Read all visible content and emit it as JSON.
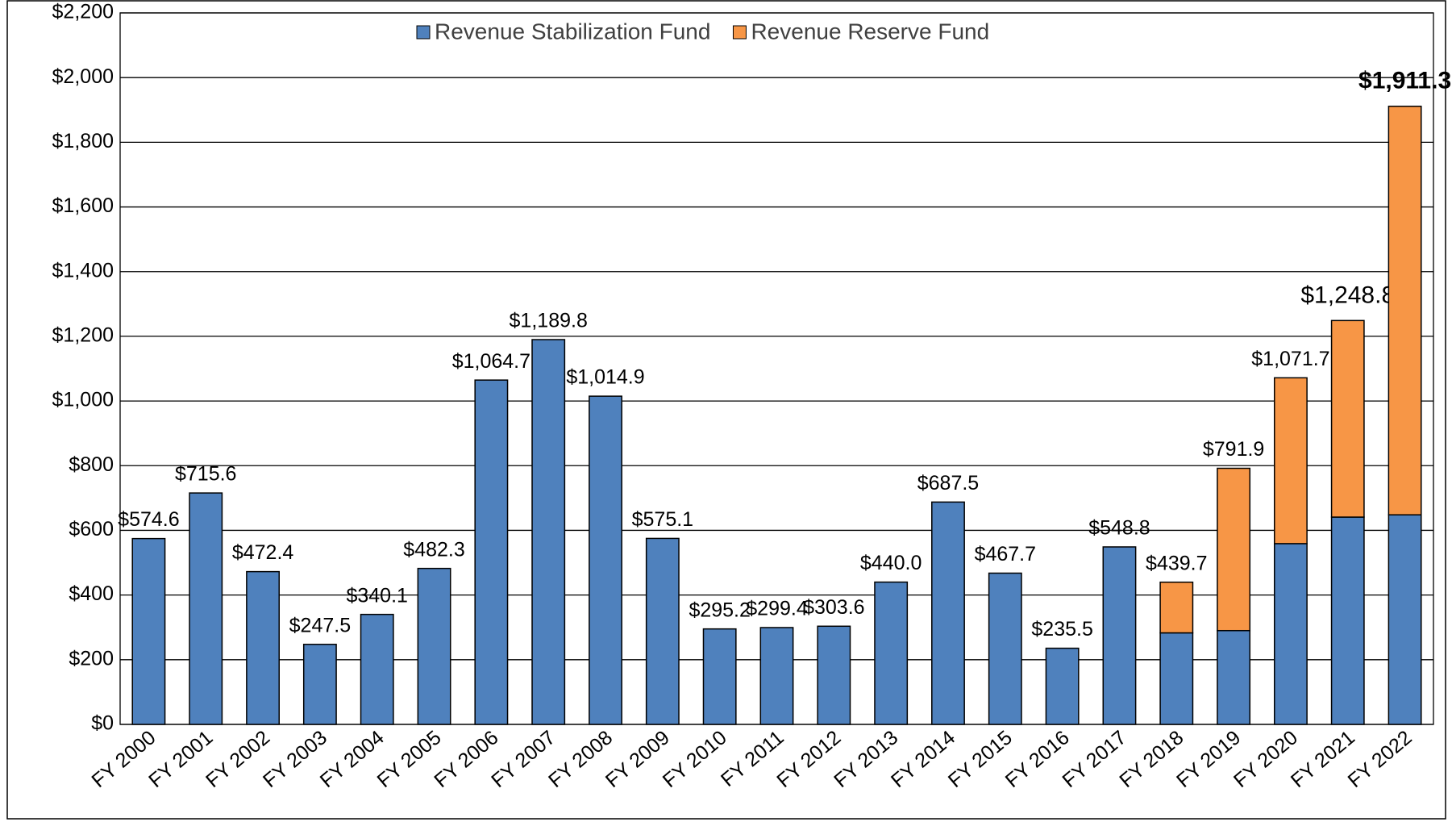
{
  "chart_data": {
    "type": "stacked_bar",
    "categories": [
      "FY 2000",
      "FY 2001",
      "FY 2002",
      "FY 2003",
      "FY 2004",
      "FY 2005",
      "FY 2006",
      "FY 2007",
      "FY 2008",
      "FY 2009",
      "FY 2010",
      "FY 2011",
      "FY 2012",
      "FY 2013",
      "FY 2014",
      "FY 2015",
      "FY 2016",
      "FY 2017",
      "FY 2018",
      "FY 2019",
      "FY 2020",
      "FY 2021",
      "FY 2022"
    ],
    "series": [
      {
        "name": "Revenue Stabilization Fund",
        "color": "#4f81bd",
        "values": [
          574.6,
          715.6,
          472.4,
          247.5,
          340.1,
          482.3,
          1064.7,
          1189.8,
          1014.9,
          575.1,
          295.2,
          299.4,
          303.6,
          440.0,
          687.5,
          467.7,
          235.5,
          548.8,
          283,
          290,
          559,
          641,
          648
        ]
      },
      {
        "name": "Revenue Reserve Fund",
        "color": "#f79646",
        "values": [
          null,
          null,
          null,
          null,
          null,
          null,
          null,
          null,
          null,
          null,
          null,
          null,
          null,
          null,
          null,
          null,
          null,
          null,
          156.7,
          501.9,
          512.7,
          607.8,
          1263.3
        ]
      }
    ],
    "totals": [
      574.6,
      715.6,
      472.4,
      247.5,
      340.1,
      482.3,
      1064.7,
      1189.8,
      1014.9,
      575.1,
      295.2,
      299.4,
      303.6,
      440.0,
      687.5,
      467.7,
      235.5,
      548.8,
      439.7,
      791.9,
      1071.7,
      1248.8,
      1911.3
    ],
    "total_labels": [
      "$574.6",
      "$715.6",
      "$472.4",
      "$247.5",
      "$340.1",
      "$482.3",
      "$1,064.7",
      "$1,189.8",
      "$1,014.9",
      "$575.1",
      "$295.2",
      "$299.4",
      "$303.6",
      "$440.0",
      "$687.5",
      "$467.7",
      "$235.5",
      "$548.8",
      "$439.7",
      "$791.9",
      "$1,071.7",
      "$1,248.8",
      "$1,911.3"
    ],
    "ylim": [
      0,
      2200
    ],
    "yticks": [
      {
        "value": 0,
        "label": "$0"
      },
      {
        "value": 200,
        "label": "$200"
      },
      {
        "value": 400,
        "label": "$400"
      },
      {
        "value": 600,
        "label": "$600"
      },
      {
        "value": 800,
        "label": "$800"
      },
      {
        "value": 1000,
        "label": "$1,000"
      },
      {
        "value": 1200,
        "label": "$1,200"
      },
      {
        "value": 1400,
        "label": "$1,400"
      },
      {
        "value": 1600,
        "label": "$1,600"
      },
      {
        "value": 1800,
        "label": "$1,800"
      },
      {
        "value": 2000,
        "label": "$2,000"
      },
      {
        "value": 2200,
        "label": "$2,200"
      }
    ],
    "grid": true,
    "legend": "top"
  }
}
